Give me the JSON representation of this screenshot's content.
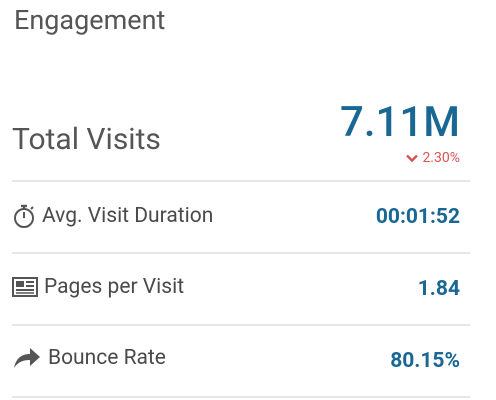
{
  "header": {
    "title": "Engagement"
  },
  "total": {
    "label": "Total Visits",
    "value": "7.11M",
    "change": "2.30%"
  },
  "metrics": [
    {
      "label": "Avg. Visit Duration",
      "value": "00:01:52"
    },
    {
      "label": "Pages per Visit",
      "value": "1.84"
    },
    {
      "label": "Bounce Rate",
      "value": "80.15%"
    }
  ]
}
